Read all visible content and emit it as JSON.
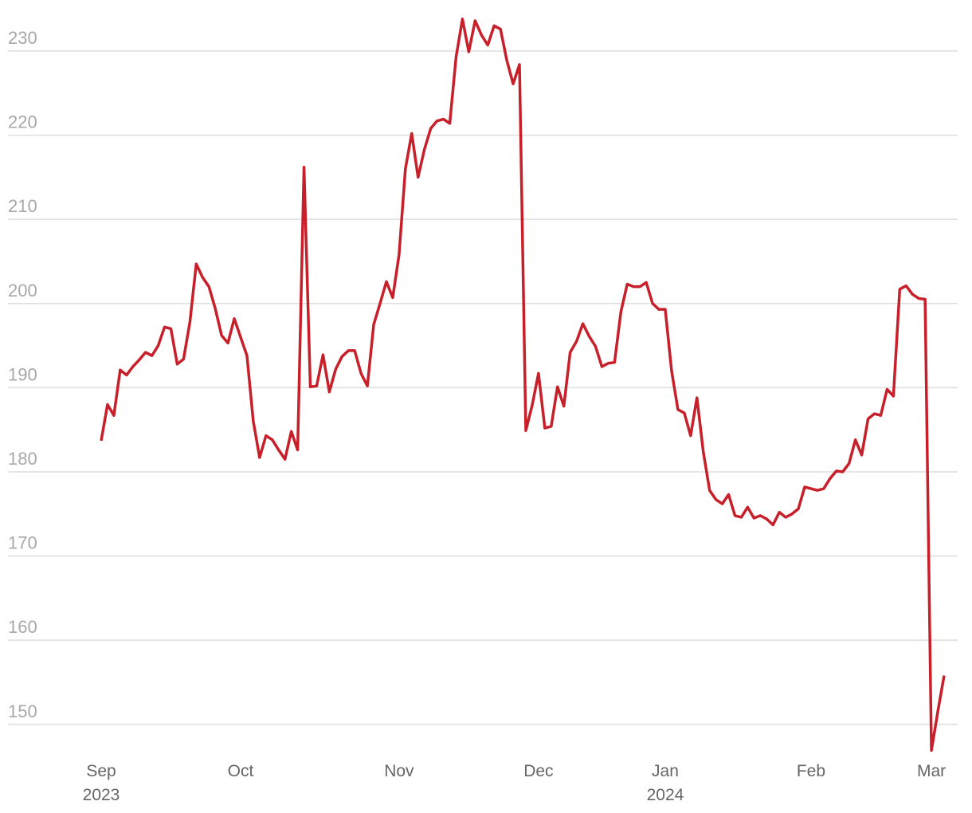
{
  "chart_data": {
    "type": "line",
    "categories": [
      "Sep",
      null,
      null,
      null,
      null,
      null,
      null,
      null,
      null,
      null,
      null,
      null,
      null,
      null,
      null,
      null,
      null,
      null,
      null,
      null,
      null,
      null,
      "Oct",
      null,
      null,
      null,
      null,
      null,
      null,
      null,
      null,
      null,
      null,
      null,
      null,
      null,
      null,
      null,
      null,
      null,
      null,
      null,
      null,
      null,
      null,
      null,
      null,
      "Nov",
      null,
      null,
      null,
      null,
      null,
      null,
      null,
      null,
      null,
      null,
      null,
      null,
      null,
      null,
      null,
      null,
      null,
      null,
      null,
      null,
      null,
      "Dec",
      null,
      null,
      null,
      null,
      null,
      null,
      null,
      null,
      null,
      null,
      null,
      null,
      null,
      null,
      null,
      null,
      null,
      null,
      null,
      "Jan",
      null,
      null,
      null,
      null,
      null,
      null,
      null,
      null,
      null,
      null,
      null,
      null,
      null,
      null,
      null,
      null,
      null,
      null,
      null,
      null,
      null,
      null,
      "Feb",
      null,
      null,
      null,
      null,
      null,
      null,
      null,
      null,
      null,
      null,
      null,
      null,
      null,
      null,
      null,
      null,
      null,
      null,
      "Mar",
      null,
      null
    ],
    "category_years": [
      "2023",
      null,
      null,
      null,
      null,
      null,
      null,
      null,
      null,
      null,
      null,
      null,
      null,
      null,
      null,
      null,
      null,
      null,
      null,
      null,
      null,
      null,
      null,
      null,
      null,
      null,
      null,
      null,
      null,
      null,
      null,
      null,
      null,
      null,
      null,
      null,
      null,
      null,
      null,
      null,
      null,
      null,
      null,
      null,
      null,
      null,
      null,
      null,
      null,
      null,
      null,
      null,
      null,
      null,
      null,
      null,
      null,
      null,
      null,
      null,
      null,
      null,
      null,
      null,
      null,
      null,
      null,
      null,
      null,
      null,
      null,
      null,
      null,
      null,
      null,
      null,
      null,
      null,
      null,
      null,
      null,
      null,
      null,
      null,
      null,
      null,
      null,
      null,
      null,
      "2024",
      null,
      null,
      null,
      null,
      null,
      null,
      null,
      null,
      null,
      null,
      null,
      null,
      null,
      null,
      null,
      null,
      null,
      null,
      null,
      null,
      null,
      null,
      null,
      null,
      null,
      null,
      null,
      null,
      null,
      null,
      null,
      null,
      null,
      null,
      null,
      null,
      null,
      null,
      null,
      null,
      null,
      null,
      null,
      null
    ],
    "series": [
      {
        "color": "#c8202a",
        "values": [
          183.7,
          188.0,
          186.7,
          192.1,
          191.5,
          192.5,
          193.3,
          194.2,
          193.8,
          195.0,
          197.2,
          197.0,
          192.8,
          193.4,
          197.8,
          204.7,
          203.1,
          202.0,
          199.4,
          196.2,
          195.3,
          198.2,
          196.0,
          193.8,
          186.0,
          181.7,
          184.3,
          183.8,
          182.6,
          181.5,
          184.8,
          182.6,
          216.2,
          190.1,
          190.2,
          193.9,
          189.5,
          192.2,
          193.7,
          194.4,
          194.4,
          191.7,
          190.2,
          197.5,
          200.0,
          202.6,
          200.7,
          205.8,
          216.0,
          220.2,
          215.0,
          218.3,
          220.8,
          221.7,
          221.9,
          221.4,
          229.3,
          233.8,
          229.9,
          233.6,
          231.9,
          230.7,
          233.0,
          232.6,
          228.9,
          226.1,
          228.4,
          184.9,
          187.9,
          191.7,
          185.2,
          185.4,
          190.1,
          187.8,
          194.2,
          195.5,
          197.6,
          196.1,
          194.9,
          192.5,
          192.9,
          193.0,
          199.0,
          202.3,
          202.0,
          202.0,
          202.5,
          200.0,
          199.3,
          199.3,
          192.0,
          187.4,
          187.0,
          184.3,
          188.8,
          182.4,
          177.8,
          176.7,
          176.2,
          177.3,
          174.8,
          174.6,
          175.8,
          174.5,
          174.8,
          174.4,
          173.7,
          175.2,
          174.6,
          175.0,
          175.6,
          178.2,
          178.0,
          177.8,
          178.0,
          179.2,
          180.1,
          180.0,
          181.0,
          183.8,
          182.0,
          186.3,
          186.9,
          186.7,
          189.8,
          189.0,
          201.7,
          202.1,
          201.1,
          200.6,
          200.5,
          146.9,
          151.5,
          155.8
        ]
      }
    ],
    "ylim": [
      146,
      234
    ],
    "yticks": [
      150,
      160,
      170,
      180,
      190,
      200,
      210,
      220,
      230
    ],
    "grid": true
  }
}
